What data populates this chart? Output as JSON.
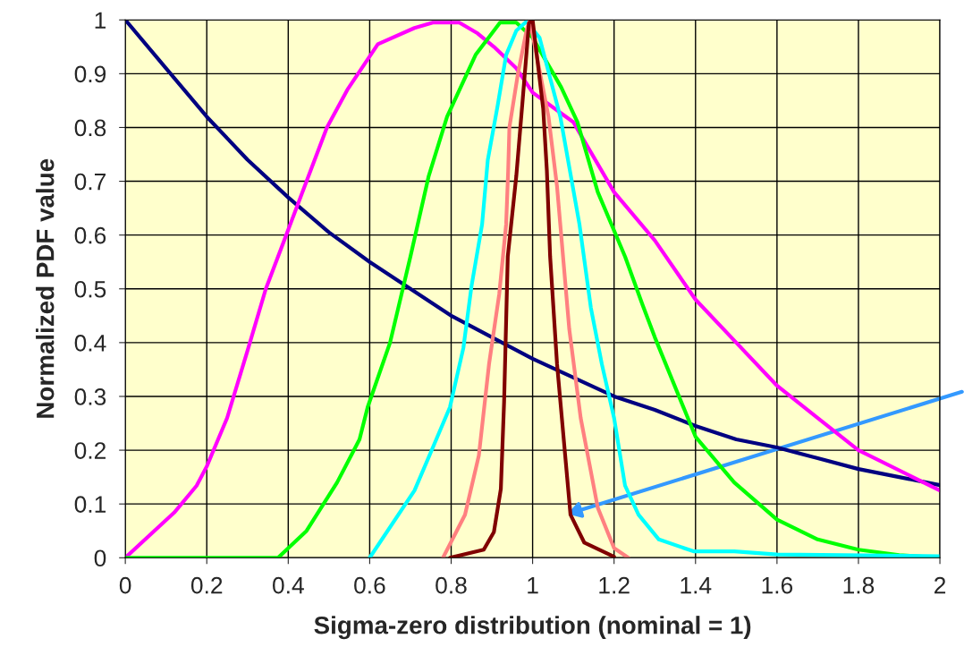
{
  "chart_data": {
    "type": "line",
    "xlabel": "Sigma-zero distribution (nominal = 1)",
    "ylabel": "Normalized PDF value",
    "xlim": [
      0,
      2
    ],
    "xticks": [
      0,
      0.2,
      0.4,
      0.6,
      0.8,
      1,
      1.2,
      1.4,
      1.6,
      1.8,
      2
    ],
    "ylim": [
      0,
      1
    ],
    "yticks": [
      0,
      0.1,
      0.2,
      0.3,
      0.4,
      0.5,
      0.6,
      0.7,
      0.8,
      0.9,
      1
    ],
    "grid": true,
    "legend": false,
    "marker": "none",
    "line_style": "solid",
    "series": [
      {
        "color": "#000080",
        "x": [
          0,
          0.1,
          0.2,
          0.3,
          0.4,
          0.5,
          0.6,
          0.7,
          0.8,
          0.9,
          1.0,
          1.1,
          1.2,
          1.3,
          1.4,
          1.5,
          1.6,
          1.7,
          1.8,
          1.9,
          2.0
        ],
        "values": [
          1,
          0.91,
          0.82,
          0.74,
          0.67,
          0.605,
          0.55,
          0.5,
          0.45,
          0.41,
          0.37,
          0.335,
          0.3,
          0.275,
          0.245,
          0.22,
          0.205,
          0.185,
          0.165,
          0.15,
          0.135
        ]
      },
      {
        "color": "#ff00ff",
        "x": [
          0,
          0.12,
          0.175,
          0.2,
          0.25,
          0.3,
          0.345,
          0.4,
          0.445,
          0.495,
          0.545,
          0.62,
          0.71,
          0.755,
          0.82,
          0.865,
          0.905,
          0.96,
          1.0,
          1.1,
          1.2,
          1.3,
          1.4,
          1.5,
          1.6,
          1.7,
          1.8,
          2.0
        ],
        "values": [
          0,
          0.084,
          0.134,
          0.17,
          0.26,
          0.385,
          0.5,
          0.61,
          0.7,
          0.8,
          0.87,
          0.955,
          0.985,
          0.995,
          0.995,
          0.975,
          0.95,
          0.91,
          0.865,
          0.81,
          0.68,
          0.59,
          0.48,
          0.4,
          0.32,
          0.26,
          0.2,
          0.125
        ]
      },
      {
        "color": "#00ff00",
        "x": [
          0,
          0.2,
          0.375,
          0.445,
          0.52,
          0.575,
          0.595,
          0.65,
          0.7,
          0.745,
          0.79,
          0.86,
          0.92,
          0.96,
          1.0,
          1.07,
          1.11,
          1.16,
          1.227,
          1.27,
          1.3,
          1.4,
          1.495,
          1.6,
          1.7,
          1.8,
          1.9,
          2.0
        ],
        "values": [
          0,
          0,
          0,
          0.05,
          0.14,
          0.22,
          0.28,
          0.4,
          0.56,
          0.71,
          0.82,
          0.935,
          0.995,
          0.995,
          0.967,
          0.875,
          0.81,
          0.68,
          0.56,
          0.47,
          0.41,
          0.225,
          0.14,
          0.071,
          0.034,
          0.015,
          0.005,
          0
        ]
      },
      {
        "color": "#00ffff",
        "x": [
          0.6,
          0.71,
          0.75,
          0.797,
          0.83,
          0.85,
          0.876,
          0.89,
          0.914,
          0.935,
          0.96,
          0.985,
          1.017,
          1.068,
          1.115,
          1.143,
          1.17,
          1.2,
          1.227,
          1.26,
          1.31,
          1.395,
          1.495,
          1.6,
          2.0
        ],
        "values": [
          0,
          0.125,
          0.196,
          0.28,
          0.39,
          0.505,
          0.62,
          0.74,
          0.84,
          0.935,
          0.98,
          0.997,
          0.967,
          0.82,
          0.62,
          0.465,
          0.36,
          0.26,
          0.134,
          0.08,
          0.034,
          0.012,
          0.012,
          0.006,
          0.003
        ]
      },
      {
        "color": "#ff8080",
        "x": [
          0.78,
          0.834,
          0.868,
          0.893,
          0.918,
          0.935,
          0.94,
          0.943,
          0.964,
          0.985,
          0.993,
          1.039,
          1.06,
          1.09,
          1.118,
          1.16,
          1.2,
          1.235
        ],
        "values": [
          0,
          0.08,
          0.19,
          0.36,
          0.49,
          0.62,
          0.72,
          0.8,
          0.9,
          0.98,
          1.0,
          0.82,
          0.69,
          0.425,
          0.26,
          0.093,
          0.018,
          0
        ]
      },
      {
        "color": "#800000",
        "x": [
          0.797,
          0.88,
          0.905,
          0.922,
          0.93,
          0.939,
          0.96,
          0.976,
          0.991,
          1.0,
          1.026,
          1.035,
          1.043,
          1.06,
          1.08,
          1.093,
          1.127,
          1.2
        ],
        "values": [
          0,
          0.015,
          0.048,
          0.128,
          0.29,
          0.56,
          0.71,
          0.855,
          0.994,
          1.0,
          0.835,
          0.72,
          0.56,
          0.36,
          0.19,
          0.08,
          0.028,
          0.002
        ]
      }
    ]
  }
}
